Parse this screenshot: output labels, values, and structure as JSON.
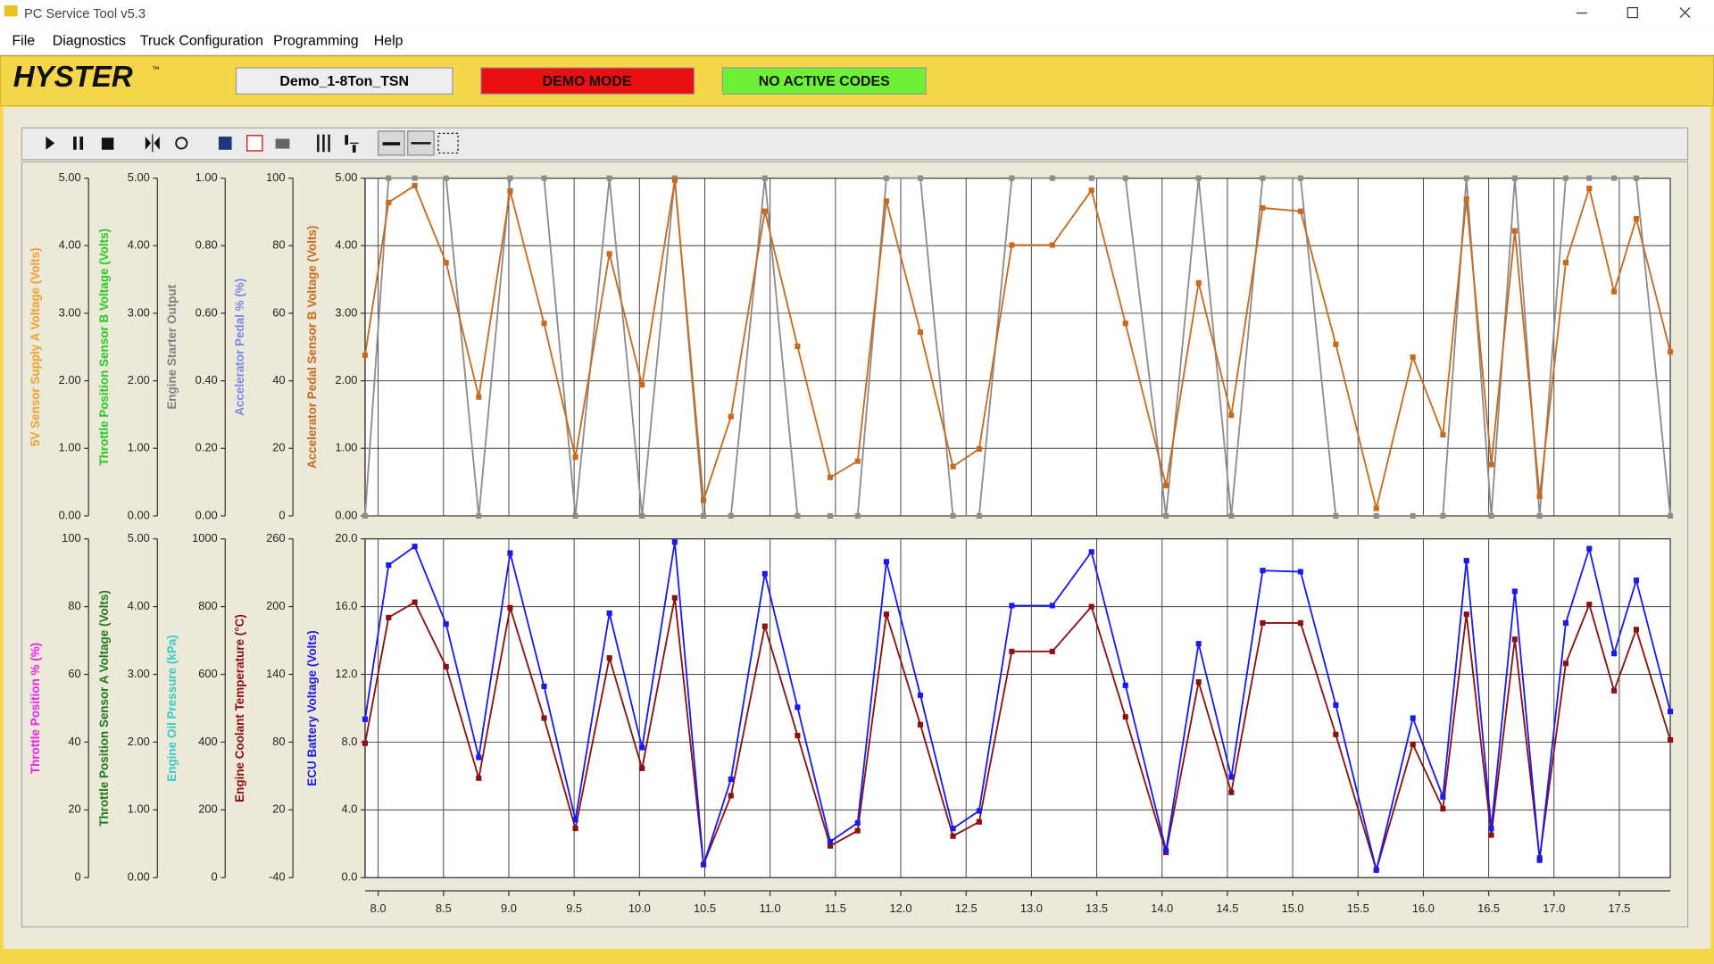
{
  "window": {
    "title": "PC Service Tool v5.3"
  },
  "menu": [
    "File",
    "Diagnostics",
    "Truck Configuration",
    "Programming",
    "Help"
  ],
  "header": {
    "brand": "HYSTER",
    "trademark": "™",
    "model": "Demo_1-8Ton_TSN",
    "mode": "DEMO MODE",
    "codes": "NO ACTIVE CODES"
  },
  "chart_data": [
    {
      "type": "line",
      "xlim": [
        7.9,
        17.89
      ],
      "xticks": [
        {
          "value": 8,
          "label": "8.0"
        },
        8.5,
        {
          "value": 9,
          "label": "9.0"
        },
        9.5,
        {
          "value": 10,
          "label": "10.0"
        },
        10.5,
        {
          "value": 11,
          "label": "11.0"
        },
        11.5,
        {
          "value": 12,
          "label": "12.0"
        },
        12.5,
        {
          "value": 13,
          "label": "13.0"
        },
        13.5,
        {
          "value": 14,
          "label": "14.0"
        },
        14.5,
        {
          "value": 15,
          "label": "15.0"
        },
        15.5,
        {
          "value": 16,
          "label": "16.0"
        },
        16.5,
        {
          "value": 17,
          "label": "17.0"
        },
        17.5
      ],
      "x": [
        7.9,
        8.08,
        8.28,
        8.52,
        8.77,
        9.01,
        9.27,
        9.51,
        9.77,
        10.02,
        10.27,
        10.49,
        10.7,
        10.96,
        11.21,
        11.46,
        11.67,
        11.89,
        12.15,
        12.4,
        12.6,
        12.85,
        13.16,
        13.46,
        13.72,
        14.03,
        14.28,
        14.53,
        14.77,
        15.06,
        15.33,
        15.64,
        15.92,
        16.15,
        16.33,
        16.52,
        16.7,
        16.89,
        17.09,
        17.27,
        17.46,
        17.63,
        17.89
      ],
      "y_axes": [
        {
          "label": "5V Sensor Supply A Voltage (Volts)",
          "color": "#f0a030",
          "ylim": [
            0,
            5
          ],
          "yticks": [
            {
              "value": 0,
              "label": "0.00"
            },
            {
              "value": 1,
              "label": "1.00"
            },
            {
              "value": 2,
              "label": "2.00"
            },
            {
              "value": 3,
              "label": "3.00"
            },
            {
              "value": 4,
              "label": "4.00"
            },
            {
              "value": 5,
              "label": "5.00"
            }
          ]
        },
        {
          "label": "Throttle Position Sensor B Voltage (Volts)",
          "color": "#22cc22",
          "ylim": [
            0,
            5
          ],
          "yticks": [
            {
              "value": 0,
              "label": "0.00"
            },
            {
              "value": 1,
              "label": "1.00"
            },
            {
              "value": 2,
              "label": "2.00"
            },
            {
              "value": 3,
              "label": "3.00"
            },
            {
              "value": 4,
              "label": "4.00"
            },
            {
              "value": 5,
              "label": "5.00"
            }
          ]
        },
        {
          "label": "Engine Starter Output",
          "color": "#808080",
          "ylim": [
            0,
            1
          ],
          "yticks": [
            {
              "value": 0,
              "label": "0.00"
            },
            {
              "value": 0.2,
              "label": "0.20"
            },
            {
              "value": 0.4,
              "label": "0.40"
            },
            {
              "value": 0.6,
              "label": "0.60"
            },
            {
              "value": 0.8,
              "label": "0.80"
            },
            {
              "value": 1,
              "label": "1.00"
            }
          ]
        },
        {
          "label": "Accelerator Pedal % (%)",
          "color": "#7788ee",
          "ylim": [
            0,
            100
          ],
          "yticks": [
            0,
            20,
            40,
            60,
            80,
            100
          ]
        },
        {
          "label": "Accelerator Pedal Sensor B Voltage (Volts)",
          "color": "#c8691c",
          "ylim": [
            0,
            5
          ],
          "yticks": [
            {
              "value": 0,
              "label": "0.00"
            },
            {
              "value": 1,
              "label": "1.00"
            },
            {
              "value": 2,
              "label": "2.00"
            },
            {
              "value": 3,
              "label": "3.00"
            },
            {
              "value": 4,
              "label": "4.00"
            },
            {
              "value": 5,
              "label": "5.00"
            }
          ]
        }
      ],
      "series": [
        {
          "axis": 2,
          "color": "#8c8c8c",
          "values": [
            0,
            1,
            1,
            1,
            0,
            1,
            1,
            0,
            1,
            0,
            1,
            0,
            0,
            1,
            0,
            0,
            0,
            1,
            1,
            0,
            0,
            1,
            1,
            1,
            1,
            0,
            1,
            0,
            1,
            1,
            0,
            0,
            0,
            0,
            1,
            0,
            1,
            0,
            1,
            1,
            1,
            1,
            0
          ]
        },
        {
          "axis": 4,
          "color": "#c8691c",
          "values": [
            2.38,
            4.64,
            4.89,
            3.75,
            1.76,
            4.81,
            2.85,
            0.87,
            3.88,
            1.94,
            4.97,
            0.23,
            1.47,
            4.51,
            2.51,
            0.57,
            0.81,
            4.66,
            2.72,
            0.73,
            0.99,
            4.01,
            4.01,
            4.82,
            2.85,
            0.45,
            3.45,
            1.49,
            4.56,
            4.51,
            2.54,
            0.11,
            2.35,
            1.2,
            4.69,
            0.76,
            4.22,
            0.29,
            3.75,
            4.85,
            3.32,
            4.4,
            2.43
          ]
        }
      ]
    },
    {
      "type": "line",
      "xlim": [
        7.9,
        17.89
      ],
      "xticks": [
        {
          "value": 8,
          "label": "8.0"
        },
        8.5,
        {
          "value": 9,
          "label": "9.0"
        },
        9.5,
        {
          "value": 10,
          "label": "10.0"
        },
        10.5,
        {
          "value": 11,
          "label": "11.0"
        },
        11.5,
        {
          "value": 12,
          "label": "12.0"
        },
        12.5,
        {
          "value": 13,
          "label": "13.0"
        },
        13.5,
        {
          "value": 14,
          "label": "14.0"
        },
        14.5,
        {
          "value": 15,
          "label": "15.0"
        },
        15.5,
        {
          "value": 16,
          "label": "16.0"
        },
        16.5,
        {
          "value": 17,
          "label": "17.0"
        },
        17.5
      ],
      "x": [
        7.9,
        8.08,
        8.28,
        8.52,
        8.77,
        9.01,
        9.27,
        9.51,
        9.77,
        10.02,
        10.27,
        10.49,
        10.7,
        10.96,
        11.21,
        11.46,
        11.67,
        11.89,
        12.15,
        12.4,
        12.6,
        12.85,
        13.16,
        13.46,
        13.72,
        14.03,
        14.28,
        14.53,
        14.77,
        15.06,
        15.33,
        15.64,
        15.92,
        16.15,
        16.33,
        16.52,
        16.7,
        16.89,
        17.09,
        17.27,
        17.46,
        17.63,
        17.89
      ],
      "y_axes": [
        {
          "label": "Throttle Position % (%)",
          "color": "#ee22ee",
          "ylim": [
            0,
            100
          ],
          "yticks": [
            0,
            20,
            40,
            60,
            80,
            100
          ]
        },
        {
          "label": "Throttle Position Sensor A Voltage (Volts)",
          "color": "#1e7a1e",
          "ylim": [
            0,
            5
          ],
          "yticks": [
            {
              "value": 0,
              "label": "0.00"
            },
            {
              "value": 1,
              "label": "1.00"
            },
            {
              "value": 2,
              "label": "2.00"
            },
            {
              "value": 3,
              "label": "3.00"
            },
            {
              "value": 4,
              "label": "4.00"
            },
            {
              "value": 5,
              "label": "5.00"
            }
          ]
        },
        {
          "label": "Engine Oil Pressure (kPa)",
          "color": "#33cccc",
          "ylim": [
            0,
            1000
          ],
          "yticks": [
            0,
            200,
            400,
            600,
            800,
            1000
          ]
        },
        {
          "label": "Engine Coolant Temperature (°C)",
          "color": "#8b1010",
          "ylim": [
            -40,
            260
          ],
          "yticks": [
            -40,
            20,
            80,
            140,
            200,
            260
          ]
        },
        {
          "label": "ECU Battery Voltage (Volts)",
          "color": "#1a1aee",
          "ylim": [
            0,
            20
          ],
          "yticks": [
            {
              "value": 0,
              "label": "0.0"
            },
            {
              "value": 4,
              "label": "4.0"
            },
            {
              "value": 8,
              "label": "8.0"
            },
            {
              "value": 12,
              "label": "12.0"
            },
            {
              "value": 16,
              "label": "16.0"
            },
            {
              "value": 20,
              "label": "20.0"
            }
          ]
        }
      ],
      "series": [
        {
          "axis": 3,
          "color": "#8b1010",
          "values": [
            79,
            190.3,
            203.9,
            146.8,
            48.1,
            199.0,
            101.3,
            3.6,
            154.5,
            56.8,
            207.8,
            -28.4,
            32.6,
            182.6,
            85.8,
            -11.9,
            1.6,
            193.2,
            95.5,
            -3.2,
            9.4,
            160.3,
            160.3,
            200.0,
            102.3,
            -17.7,
            133.2,
            35.5,
            185.5,
            185.5,
            86.8,
            -33.2,
            78.1,
            21.0,
            193.2,
            -2.3,
            171.0,
            -22.6,
            149.7,
            201.9,
            125.5,
            179.7,
            81.9
          ]
        },
        {
          "axis": 4,
          "color": "#1a1aee",
          "values": [
            9.35,
            18.45,
            19.55,
            14.97,
            7.1,
            19.16,
            11.29,
            3.42,
            15.61,
            7.68,
            19.81,
            0.77,
            5.81,
            17.94,
            10.06,
            2.13,
            3.23,
            18.65,
            10.77,
            2.9,
            3.94,
            16.06,
            16.06,
            19.23,
            11.35,
            1.61,
            13.81,
            5.94,
            18.13,
            18.06,
            10.19,
            0.45,
            9.42,
            4.77,
            18.71,
            2.9,
            16.9,
            1.03,
            15.03,
            19.42,
            13.23,
            17.55,
            9.81
          ]
        }
      ]
    }
  ]
}
